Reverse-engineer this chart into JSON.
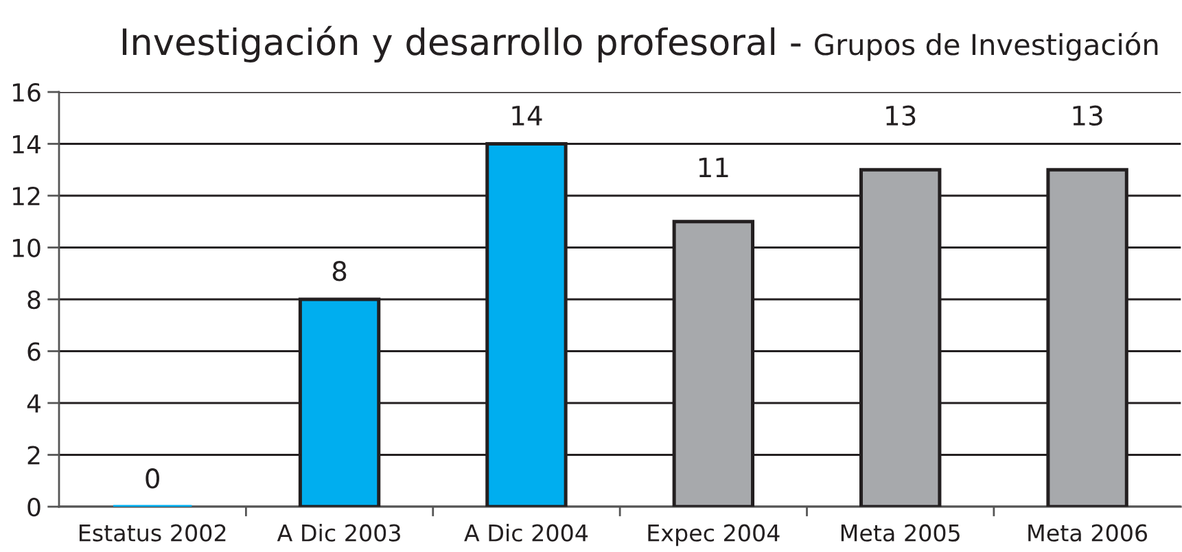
{
  "chart_data": {
    "type": "bar",
    "title": "Investigación y desarrollo profesoral -",
    "subtitle": "Grupos de Investigación",
    "categories": [
      "Estatus 2002",
      "A Dic 2003",
      "A Dic 2004",
      "Expec 2004",
      "Meta 2005",
      "Meta 2006"
    ],
    "values": [
      0,
      8,
      14,
      11,
      13,
      13
    ],
    "colors": [
      "#00aeef",
      "#00aeef",
      "#00aeef",
      "#a7a9ac",
      "#a7a9ac",
      "#a7a9ac"
    ],
    "ylim": [
      0,
      16
    ],
    "yticks": [
      0,
      2,
      4,
      6,
      8,
      10,
      12,
      14,
      16
    ],
    "grid": "y",
    "data_labels": true
  }
}
